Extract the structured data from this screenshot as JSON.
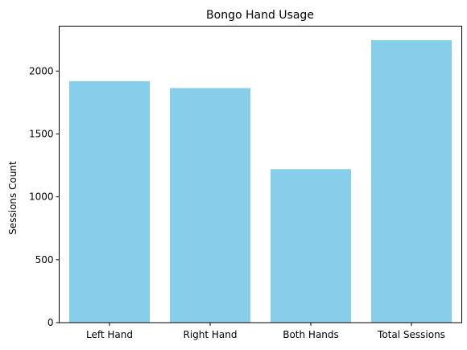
{
  "chart_data": {
    "type": "bar",
    "title": "Bongo Hand Usage",
    "xlabel": "",
    "ylabel": "Sessions Count",
    "categories": [
      "Left Hand",
      "Right Hand",
      "Both Hands",
      "Total Sessions"
    ],
    "values": [
      1920,
      1865,
      1220,
      2245
    ],
    "ylim": [
      0,
      2357
    ],
    "yticks": [
      0,
      500,
      1000,
      1500,
      2000
    ],
    "bar_color": "#87CEEB",
    "grid": false,
    "legend": "none"
  }
}
